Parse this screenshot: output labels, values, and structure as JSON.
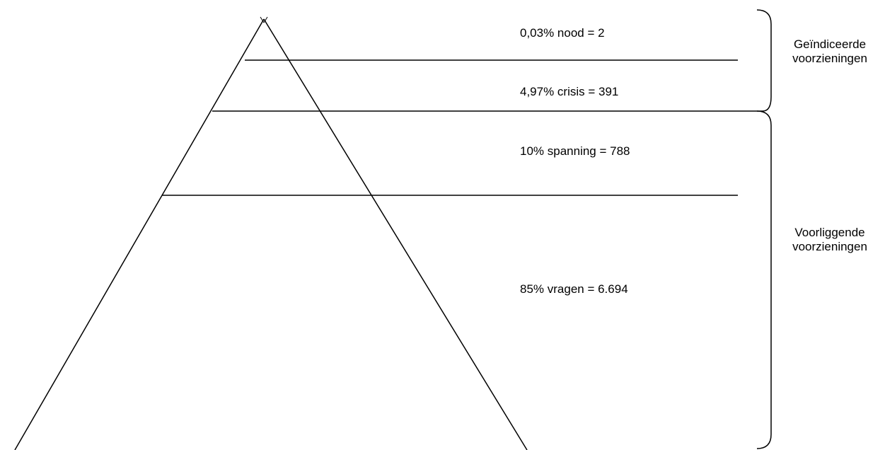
{
  "levels": [
    {
      "label": "0,03% nood = 2"
    },
    {
      "label": "4,97% crisis = 391"
    },
    {
      "label": "10% spanning = 788"
    },
    {
      "label": "85% vragen = 6.694"
    }
  ],
  "groups": [
    {
      "line1": "Geïndiceerde",
      "line2": "voorzieningen"
    },
    {
      "line1": "Voorliggende",
      "line2": "voorzieningen"
    }
  ],
  "colors": {
    "stroke": "#000000",
    "background": "#ffffff"
  }
}
